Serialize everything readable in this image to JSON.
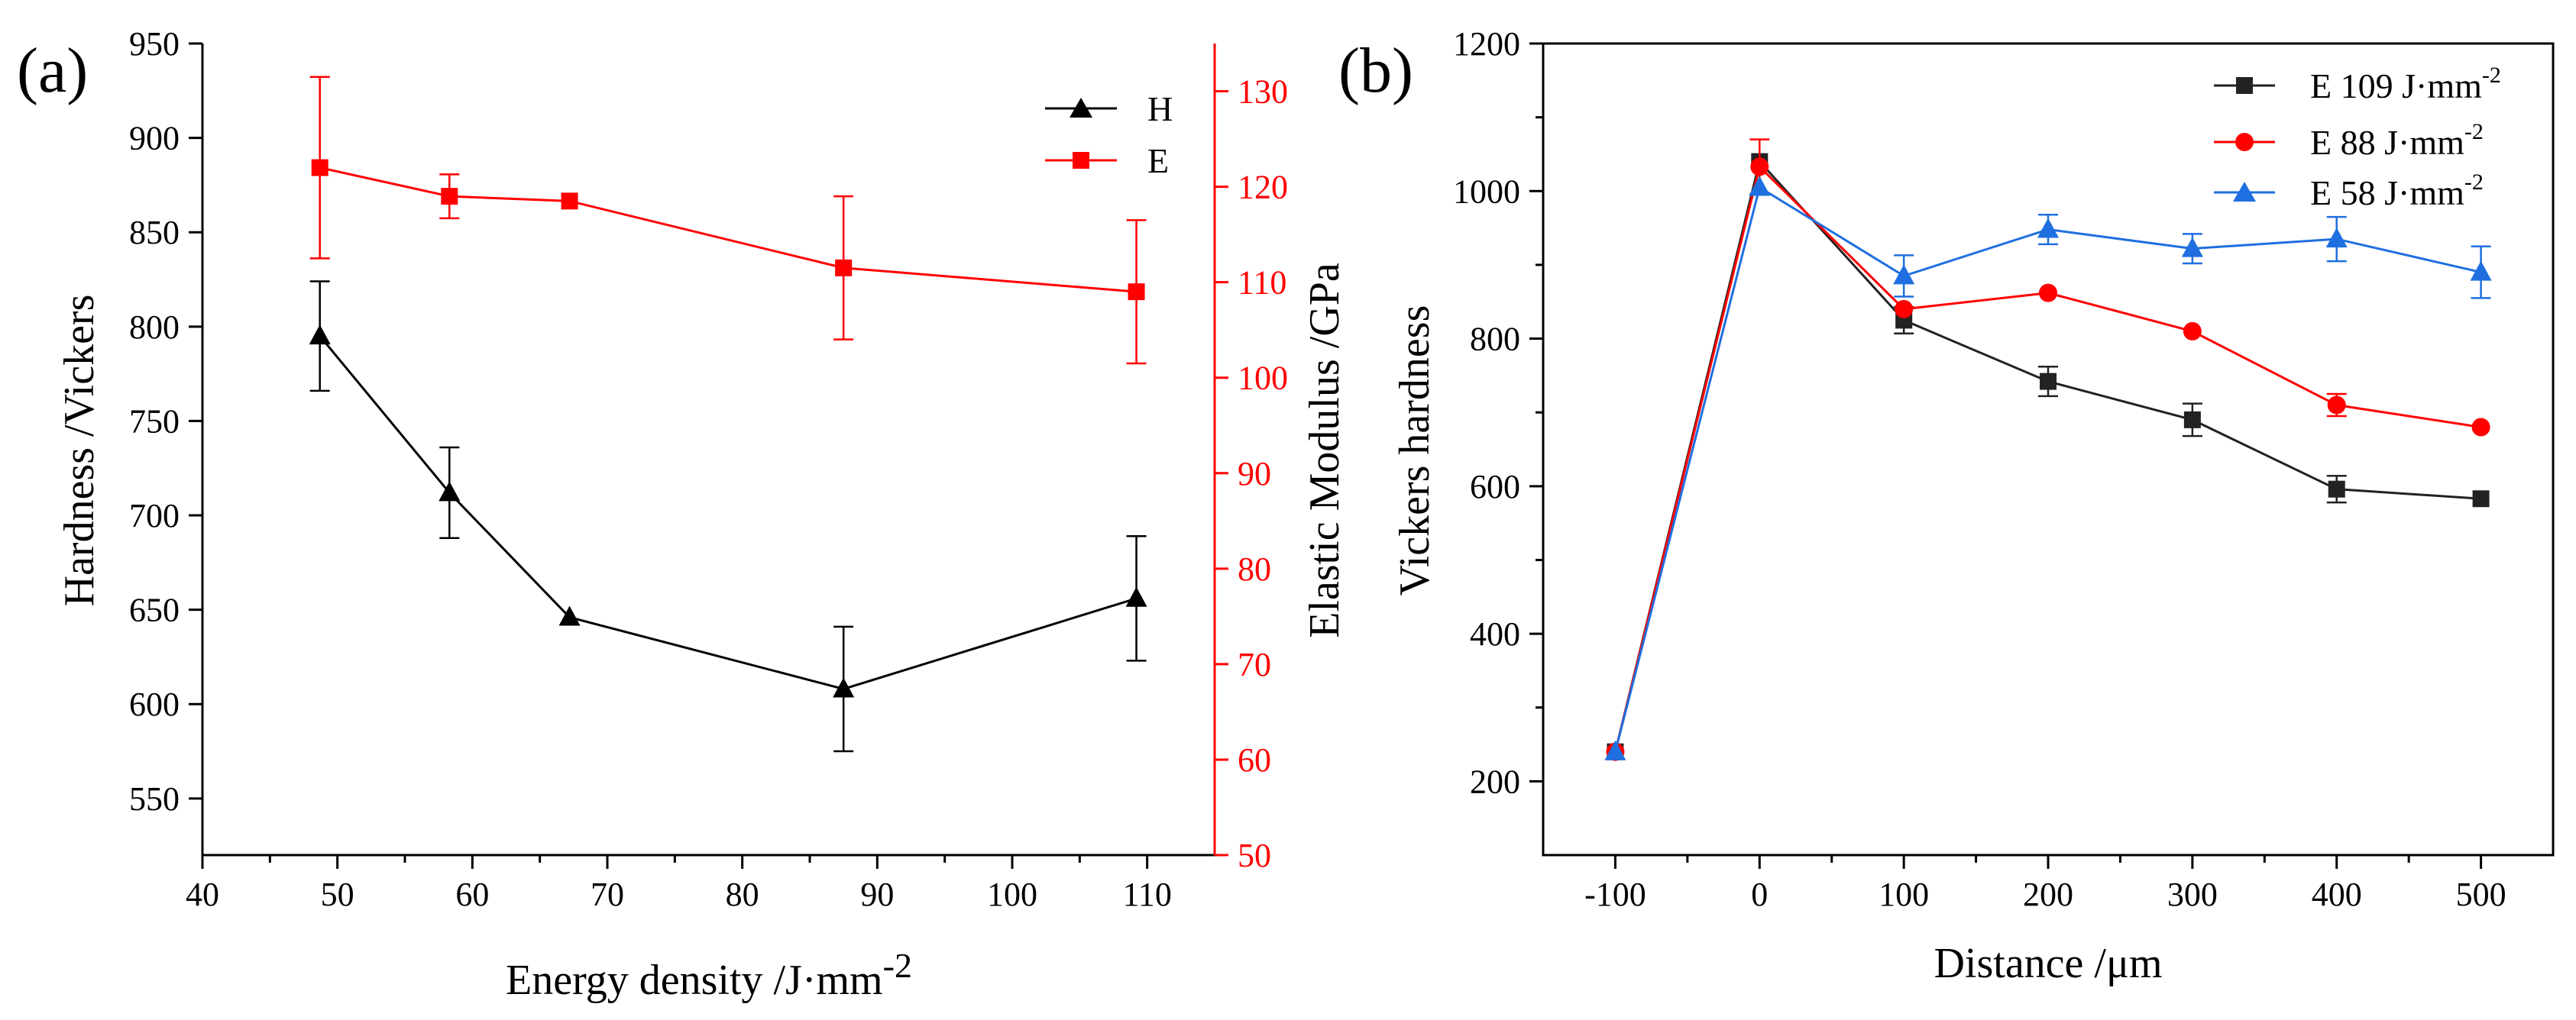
{
  "chart_data": [
    {
      "panel": "(a)",
      "type": "line",
      "xlabel": "Energy density /J·mm",
      "xlabel_sup": "-2",
      "ylabel_left": "Hardness /Vickers",
      "ylabel_right": "Elastic Modulus /GPa",
      "xlim": [
        40,
        115
      ],
      "ylim_left": [
        520,
        950
      ],
      "ylim_right": [
        50,
        135
      ],
      "xticks": [
        "40",
        "50",
        "60",
        "70",
        "80",
        "90",
        "100",
        "110"
      ],
      "yticks_left": [
        "550",
        "600",
        "650",
        "700",
        "750",
        "800",
        "850",
        "900",
        "950"
      ],
      "yticks_right": [
        "50",
        "60",
        "70",
        "80",
        "90",
        "100",
        "110",
        "120",
        "130"
      ],
      "legend": [
        "H",
        "E"
      ],
      "series": [
        {
          "name": "H",
          "axis": "left",
          "color": "#000000",
          "marker": "triangle",
          "x": [
            48.7,
            58.3,
            67.2,
            87.5,
            109.2
          ],
          "values": [
            795,
            712,
            646,
            608,
            656
          ],
          "errors": [
            29,
            24,
            0,
            33,
            33
          ]
        },
        {
          "name": "E",
          "axis": "right",
          "color": "#ff0000",
          "marker": "square",
          "x": [
            48.7,
            58.3,
            67.2,
            87.5,
            109.2
          ],
          "values": [
            122,
            119,
            118.5,
            111.5,
            109
          ],
          "errors": [
            9.5,
            2.3,
            0,
            7.5,
            7.5
          ]
        }
      ]
    },
    {
      "panel": "(b)",
      "type": "line",
      "xlabel": "Distance /μm",
      "ylabel": "Vickers hardness",
      "xlim": [
        -150,
        550
      ],
      "ylim": [
        100,
        1200
      ],
      "xticks": [
        "-100",
        "0",
        "100",
        "200",
        "300",
        "400",
        "500"
      ],
      "yticks": [
        "200",
        "400",
        "600",
        "800",
        "1000",
        "1200"
      ],
      "legend": [
        "E 109 J·mm",
        "E 88 J·mm",
        "E 58 J·mm"
      ],
      "legend_sup": "-2",
      "series": [
        {
          "name": "E 109 J·mm-2",
          "color": "#222222",
          "marker": "square",
          "x": [
            -100,
            0,
            100,
            200,
            300,
            400,
            500
          ],
          "values": [
            240,
            1040,
            825,
            742,
            690,
            596,
            583
          ],
          "errors": [
            0,
            0,
            18,
            20,
            22,
            18,
            0
          ]
        },
        {
          "name": "E 88 J·mm-2",
          "color": "#ff0000",
          "marker": "circle",
          "x": [
            -100,
            0,
            100,
            200,
            300,
            400,
            500
          ],
          "values": [
            240,
            1033,
            840,
            862,
            810,
            710,
            680
          ],
          "errors": [
            0,
            37,
            0,
            0,
            0,
            15,
            0
          ]
        },
        {
          "name": "E 58 J·mm-2",
          "color": "#1f6fe0",
          "marker": "triangle",
          "x": [
            -100,
            0,
            100,
            200,
            300,
            400,
            500
          ],
          "values": [
            240,
            1005,
            885,
            948,
            922,
            935,
            890
          ],
          "errors": [
            0,
            0,
            28,
            20,
            20,
            30,
            35
          ]
        }
      ]
    }
  ]
}
